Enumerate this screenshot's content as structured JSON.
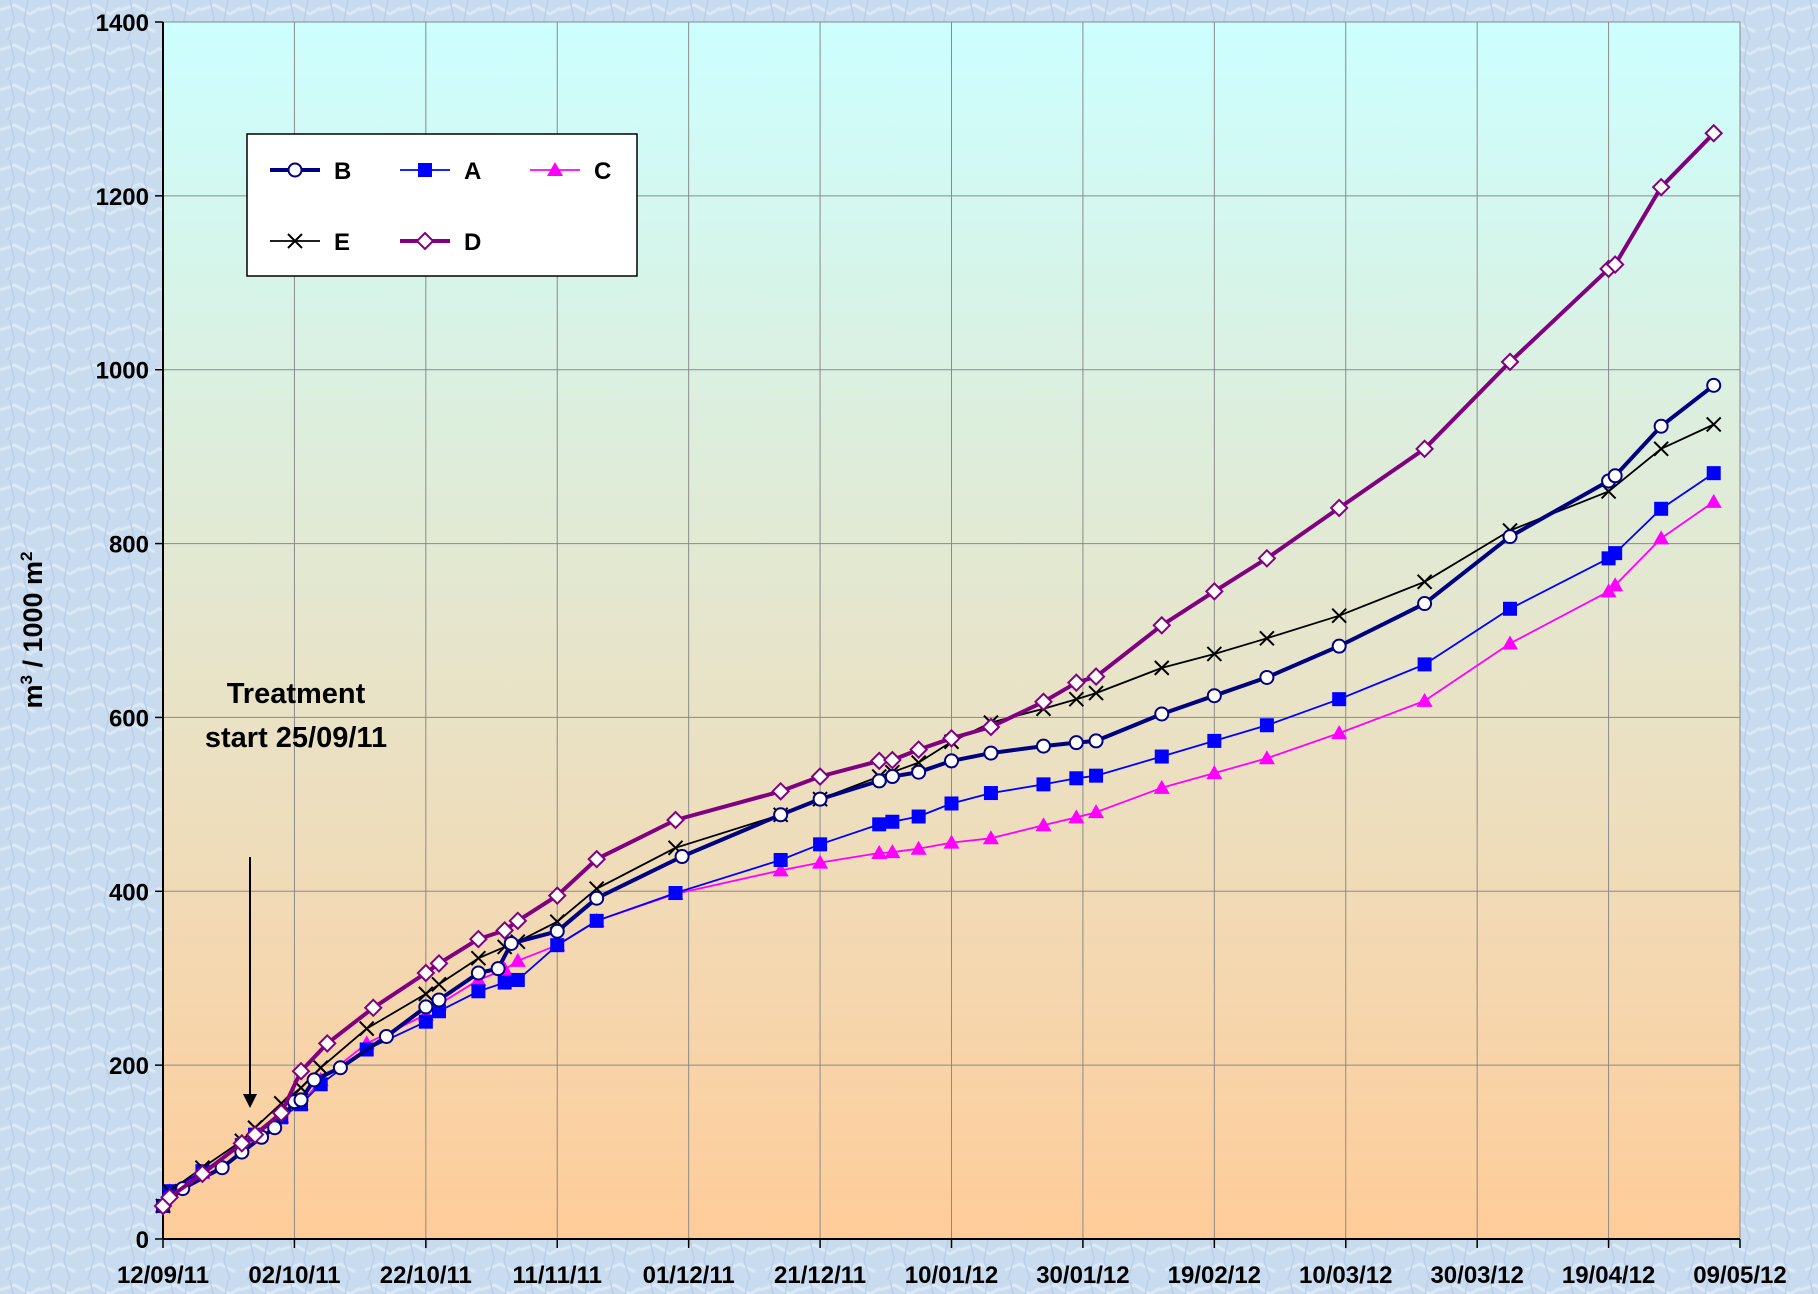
{
  "chart_data": {
    "type": "line",
    "title": "",
    "xlabel": "",
    "ylabel": "m3 / 1000 m2",
    "ylabel_parts": {
      "base": "m",
      "sup1": "3",
      "mid": " / 1000 m",
      "sup2": "2"
    },
    "ylim": [
      0,
      1400
    ],
    "y_ticks": [
      "0",
      "200",
      "400",
      "600",
      "800",
      "1000",
      "1200",
      "1400"
    ],
    "xlim": [
      "2011-09-12",
      "2012-05-09"
    ],
    "x_tick_labels": [
      "12/09/11",
      "02/10/11",
      "22/10/11",
      "11/11/11",
      "01/12/11",
      "21/12/11",
      "10/01/12",
      "30/01/12",
      "19/02/12",
      "10/03/12",
      "30/03/12",
      "19/04/12",
      "09/05/12"
    ],
    "grid": true,
    "legend_position": "top-left",
    "annotation": {
      "lines": [
        "Treatment",
        "start 25/09/11"
      ]
    },
    "series": [
      {
        "name": "B",
        "color": "#000080",
        "marker": "circle",
        "points": [
          [
            "2011-09-12",
            38
          ],
          [
            "2011-09-15",
            58
          ],
          [
            "2011-09-21",
            82
          ],
          [
            "2011-09-24",
            100
          ],
          [
            "2011-09-27",
            117
          ],
          [
            "2011-09-29",
            128
          ],
          [
            "2011-10-02",
            158
          ],
          [
            "2011-10-03",
            160
          ],
          [
            "2011-10-05",
            183
          ],
          [
            "2011-10-09",
            197
          ],
          [
            "2011-10-16",
            233
          ],
          [
            "2011-10-22",
            267
          ],
          [
            "2011-10-24",
            275
          ],
          [
            "2011-10-30",
            306
          ],
          [
            "2011-11-02",
            311
          ],
          [
            "2011-11-04",
            340
          ],
          [
            "2011-11-11",
            354
          ],
          [
            "2011-11-17",
            392
          ],
          [
            "2011-11-30",
            440
          ],
          [
            "2011-12-15",
            488
          ],
          [
            "2011-12-21",
            506
          ],
          [
            "2011-12-30",
            527
          ],
          [
            "2012-01-01",
            532
          ],
          [
            "2012-01-05",
            537
          ],
          [
            "2012-01-10",
            550
          ],
          [
            "2012-01-16",
            559
          ],
          [
            "2012-01-24",
            567
          ],
          [
            "2012-01-29",
            571
          ],
          [
            "2012-02-01",
            573
          ],
          [
            "2012-02-11",
            604
          ],
          [
            "2012-02-19",
            625
          ],
          [
            "2012-02-27",
            646
          ],
          [
            "2012-03-09",
            682
          ],
          [
            "2012-03-22",
            731
          ],
          [
            "2012-04-04",
            808
          ],
          [
            "2012-04-19",
            872
          ],
          [
            "2012-04-20",
            878
          ],
          [
            "2012-04-27",
            935
          ],
          [
            "2012-05-05",
            982
          ]
        ]
      },
      {
        "name": "A",
        "color": "#0000ff",
        "marker": "square",
        "points": [
          [
            "2011-09-12",
            38
          ],
          [
            "2011-09-13",
            55
          ],
          [
            "2011-09-18",
            78
          ],
          [
            "2011-09-24",
            108
          ],
          [
            "2011-09-26",
            120
          ],
          [
            "2011-09-30",
            140
          ],
          [
            "2011-10-03",
            155
          ],
          [
            "2011-10-06",
            178
          ],
          [
            "2011-10-13",
            218
          ],
          [
            "2011-10-22",
            250
          ],
          [
            "2011-10-24",
            262
          ],
          [
            "2011-10-30",
            285
          ],
          [
            "2011-11-03",
            295
          ],
          [
            "2011-11-05",
            298
          ],
          [
            "2011-11-11",
            338
          ],
          [
            "2011-11-17",
            366
          ],
          [
            "2011-11-29",
            398
          ],
          [
            "2011-12-15",
            436
          ],
          [
            "2011-12-21",
            454
          ],
          [
            "2011-12-30",
            477
          ],
          [
            "2012-01-01",
            480
          ],
          [
            "2012-01-05",
            486
          ],
          [
            "2012-01-10",
            501
          ],
          [
            "2012-01-16",
            513
          ],
          [
            "2012-01-24",
            523
          ],
          [
            "2012-01-29",
            530
          ],
          [
            "2012-02-01",
            533
          ],
          [
            "2012-02-11",
            555
          ],
          [
            "2012-02-19",
            573
          ],
          [
            "2012-02-27",
            591
          ],
          [
            "2012-03-09",
            621
          ],
          [
            "2012-03-22",
            661
          ],
          [
            "2012-04-04",
            725
          ],
          [
            "2012-04-19",
            783
          ],
          [
            "2012-04-20",
            789
          ],
          [
            "2012-04-27",
            840
          ],
          [
            "2012-05-05",
            881
          ]
        ]
      },
      {
        "name": "C",
        "color": "#ff00ff",
        "marker": "triangle",
        "points": [
          [
            "2011-09-12",
            38
          ],
          [
            "2011-09-13",
            55
          ],
          [
            "2011-09-18",
            76
          ],
          [
            "2011-09-24",
            108
          ],
          [
            "2011-09-26",
            120
          ],
          [
            "2011-09-30",
            140
          ],
          [
            "2011-10-03",
            155
          ],
          [
            "2011-10-06",
            183
          ],
          [
            "2011-10-13",
            225
          ],
          [
            "2011-10-22",
            258
          ],
          [
            "2011-10-24",
            270
          ],
          [
            "2011-10-30",
            298
          ],
          [
            "2011-11-03",
            310
          ],
          [
            "2011-11-05",
            320
          ],
          [
            "2011-11-11",
            338
          ],
          [
            "2011-11-17",
            366
          ],
          [
            "2011-11-29",
            397
          ],
          [
            "2011-12-15",
            424
          ],
          [
            "2011-12-21",
            433
          ],
          [
            "2011-12-30",
            444
          ],
          [
            "2012-01-01",
            445
          ],
          [
            "2012-01-05",
            449
          ],
          [
            "2012-01-10",
            456
          ],
          [
            "2012-01-16",
            461
          ],
          [
            "2012-01-24",
            476
          ],
          [
            "2012-01-29",
            485
          ],
          [
            "2012-02-01",
            491
          ],
          [
            "2012-02-11",
            519
          ],
          [
            "2012-02-19",
            536
          ],
          [
            "2012-02-27",
            553
          ],
          [
            "2012-03-09",
            582
          ],
          [
            "2012-03-22",
            619
          ],
          [
            "2012-04-04",
            685
          ],
          [
            "2012-04-19",
            745
          ],
          [
            "2012-04-20",
            752
          ],
          [
            "2012-04-27",
            806
          ],
          [
            "2012-05-05",
            848
          ]
        ]
      },
      {
        "name": "E",
        "color": "#000000",
        "marker": "x",
        "points": [
          [
            "2011-09-12",
            38
          ],
          [
            "2011-09-13",
            55
          ],
          [
            "2011-09-18",
            82
          ],
          [
            "2011-09-24",
            113
          ],
          [
            "2011-09-26",
            128
          ],
          [
            "2011-09-30",
            156
          ],
          [
            "2011-10-03",
            174
          ],
          [
            "2011-10-06",
            197
          ],
          [
            "2011-10-13",
            242
          ],
          [
            "2011-10-22",
            282
          ],
          [
            "2011-10-24",
            293
          ],
          [
            "2011-10-30",
            323
          ],
          [
            "2011-11-03",
            336
          ],
          [
            "2011-11-05",
            342
          ],
          [
            "2011-11-11",
            365
          ],
          [
            "2011-11-17",
            403
          ],
          [
            "2011-11-29",
            450
          ],
          [
            "2011-12-15",
            488
          ],
          [
            "2011-12-21",
            506
          ],
          [
            "2011-12-30",
            532
          ],
          [
            "2012-01-01",
            537
          ],
          [
            "2012-01-05",
            548
          ],
          [
            "2012-01-10",
            572
          ],
          [
            "2012-01-16",
            594
          ],
          [
            "2012-01-24",
            610
          ],
          [
            "2012-01-29",
            621
          ],
          [
            "2012-02-01",
            628
          ],
          [
            "2012-02-11",
            657
          ],
          [
            "2012-02-19",
            673
          ],
          [
            "2012-02-27",
            691
          ],
          [
            "2012-03-09",
            717
          ],
          [
            "2012-03-22",
            756
          ],
          [
            "2012-04-04",
            815
          ],
          [
            "2012-04-19",
            860
          ],
          [
            "2012-04-27",
            909
          ],
          [
            "2012-05-05",
            937
          ]
        ]
      },
      {
        "name": "D",
        "color": "#800080",
        "marker": "diamond",
        "points": [
          [
            "2011-09-12",
            38
          ],
          [
            "2011-09-13",
            48
          ],
          [
            "2011-09-18",
            75
          ],
          [
            "2011-09-24",
            110
          ],
          [
            "2011-09-26",
            120
          ],
          [
            "2011-09-30",
            145
          ],
          [
            "2011-10-03",
            193
          ],
          [
            "2011-10-07",
            225
          ],
          [
            "2011-10-14",
            266
          ],
          [
            "2011-10-22",
            306
          ],
          [
            "2011-10-24",
            317
          ],
          [
            "2011-10-30",
            345
          ],
          [
            "2011-11-03",
            355
          ],
          [
            "2011-11-05",
            366
          ],
          [
            "2011-11-11",
            395
          ],
          [
            "2011-11-17",
            437
          ],
          [
            "2011-11-29",
            482
          ],
          [
            "2011-12-15",
            515
          ],
          [
            "2011-12-21",
            532
          ],
          [
            "2011-12-30",
            550
          ],
          [
            "2012-01-01",
            551
          ],
          [
            "2012-01-05",
            563
          ],
          [
            "2012-01-10",
            576
          ],
          [
            "2012-01-16",
            589
          ],
          [
            "2012-01-24",
            618
          ],
          [
            "2012-01-29",
            640
          ],
          [
            "2012-02-01",
            647
          ],
          [
            "2012-02-11",
            706
          ],
          [
            "2012-02-19",
            745
          ],
          [
            "2012-02-27",
            783
          ],
          [
            "2012-03-09",
            841
          ],
          [
            "2012-03-22",
            909
          ],
          [
            "2012-04-04",
            1009
          ],
          [
            "2012-04-19",
            1116
          ],
          [
            "2012-04-20",
            1121
          ],
          [
            "2012-04-27",
            1210
          ],
          [
            "2012-05-05",
            1272
          ]
        ]
      }
    ]
  }
}
